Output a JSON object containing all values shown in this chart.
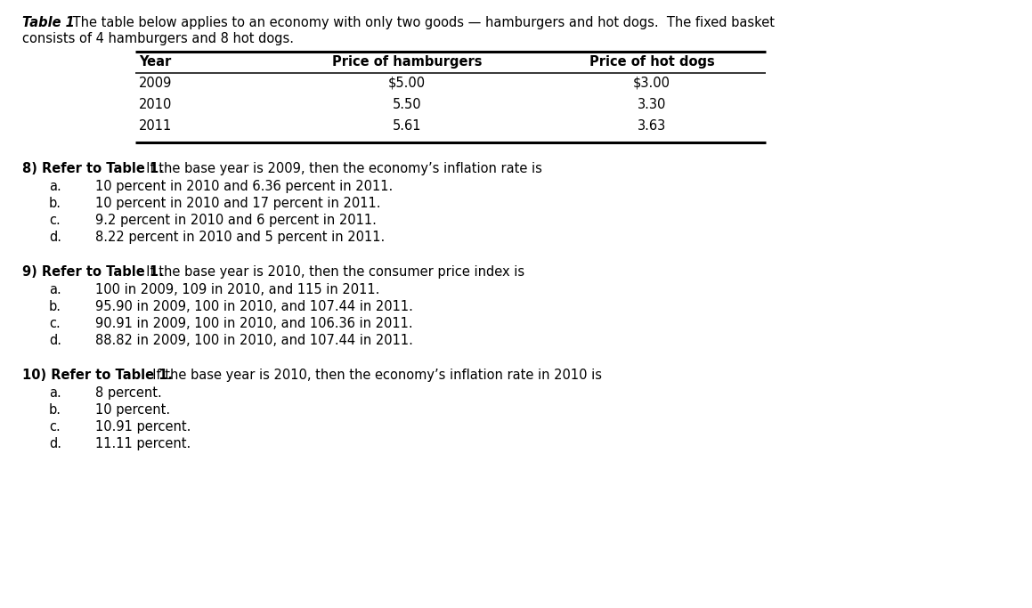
{
  "bg_color": "#ffffff",
  "title_italic": "Table 1",
  "title_rest_line1": " The table below applies to an economy with only two goods — hamburgers and hot dogs.  The fixed basket",
  "title_rest_line2": "consists of 4 hamburgers and 8 hot dogs.",
  "table_headers": [
    "Year",
    "Price of hamburgers",
    "Price of hot dogs"
  ],
  "table_rows": [
    [
      "2009",
      "$5.00",
      "$3.00"
    ],
    [
      "2010",
      "5.50",
      "3.30"
    ],
    [
      "2011",
      "5.61",
      "3.63"
    ]
  ],
  "q8_bold": "8) Refer to Table 1.",
  "q8_rest": "  If the base year is 2009, then the economy’s inflation rate is",
  "q8_options": [
    [
      "a.",
      "10 percent in 2010 and 6.36 percent in 2011."
    ],
    [
      "b.",
      "10 percent in 2010 and 17 percent in 2011."
    ],
    [
      "c.",
      "9.2 percent in 2010 and 6 percent in 2011."
    ],
    [
      "d.",
      "8.22 percent in 2010 and 5 percent in 2011."
    ]
  ],
  "q9_bold": "9) Refer to Table 1.",
  "q9_rest": "  If the base year is 2010, then the consumer price index is",
  "q9_options": [
    [
      "a.",
      "100 in 2009, 109 in 2010, and 115 in 2011."
    ],
    [
      "b.",
      "95.90 in 2009, 100 in 2010, and 107.44 in 2011."
    ],
    [
      "c.",
      "90.91 in 2009, 100 in 2010, and 106.36 in 2011."
    ],
    [
      "d.",
      "88.82 in 2009, 100 in 2010, and 107.44 in 2011."
    ]
  ],
  "q10_bold": "10) Refer to Table 1.",
  "q10_rest": "  If the base year is 2010, then the economy’s inflation rate in 2010 is",
  "q10_options": [
    [
      "a.",
      "8 percent."
    ],
    [
      "b.",
      "10 percent."
    ],
    [
      "c.",
      "10.91 percent."
    ],
    [
      "d.",
      "11.11 percent."
    ]
  ],
  "fs": 10.5,
  "fig_w": 11.59,
  "fig_h": 6.83
}
